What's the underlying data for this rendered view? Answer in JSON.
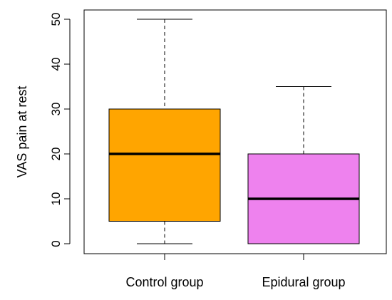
{
  "chart_data": {
    "type": "boxplot",
    "title": "",
    "xlabel": "",
    "ylabel": "VAS pain at rest",
    "ylim": [
      -1,
      51
    ],
    "yticks": [
      0,
      10,
      20,
      30,
      40,
      50
    ],
    "ytick_labels": [
      "0",
      "10",
      "20",
      "30",
      "40",
      "50"
    ],
    "grid": false,
    "legend": "none",
    "categories": [
      "Control group",
      "Epidural group"
    ],
    "boxes": [
      {
        "category": "Control group",
        "min": 0,
        "q1": 5,
        "median": 20,
        "q3": 30,
        "max": 50,
        "color": "#FFA500"
      },
      {
        "category": "Epidural group",
        "min": 0,
        "q1": 0,
        "median": 10,
        "q3": 20,
        "max": 35,
        "color": "#EE82EE"
      }
    ]
  }
}
